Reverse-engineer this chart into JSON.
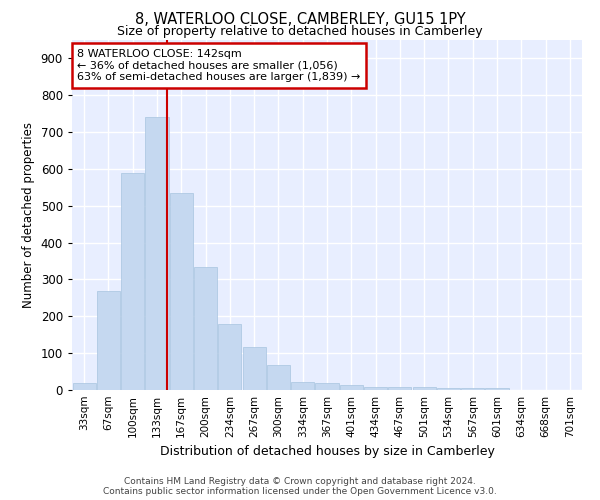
{
  "title": "8, WATERLOO CLOSE, CAMBERLEY, GU15 1PY",
  "subtitle": "Size of property relative to detached houses in Camberley",
  "xlabel": "Distribution of detached houses by size in Camberley",
  "ylabel": "Number of detached properties",
  "categories": [
    "33sqm",
    "67sqm",
    "100sqm",
    "133sqm",
    "167sqm",
    "200sqm",
    "234sqm",
    "267sqm",
    "300sqm",
    "334sqm",
    "367sqm",
    "401sqm",
    "434sqm",
    "467sqm",
    "501sqm",
    "534sqm",
    "567sqm",
    "601sqm",
    "634sqm",
    "668sqm",
    "701sqm"
  ],
  "values": [
    20,
    270,
    590,
    740,
    535,
    335,
    178,
    118,
    68,
    23,
    18,
    13,
    9,
    7,
    7,
    6,
    5,
    5,
    1,
    0,
    0
  ],
  "bar_color": "#c5d8f0",
  "bar_edgecolor": "#a8c4e0",
  "background_color": "#e8eeff",
  "grid_color": "#ffffff",
  "red_line_x": 3.42,
  "annotation_box_text_line1": "8 WATERLOO CLOSE: 142sqm",
  "annotation_box_text_line2": "← 36% of detached houses are smaller (1,056)",
  "annotation_box_text_line3": "63% of semi-detached houses are larger (1,839) →",
  "annotation_box_color": "#cc0000",
  "ylim": [
    0,
    950
  ],
  "yticks": [
    0,
    100,
    200,
    300,
    400,
    500,
    600,
    700,
    800,
    900
  ],
  "footer_line1": "Contains HM Land Registry data © Crown copyright and database right 2024.",
  "footer_line2": "Contains public sector information licensed under the Open Government Licence v3.0."
}
